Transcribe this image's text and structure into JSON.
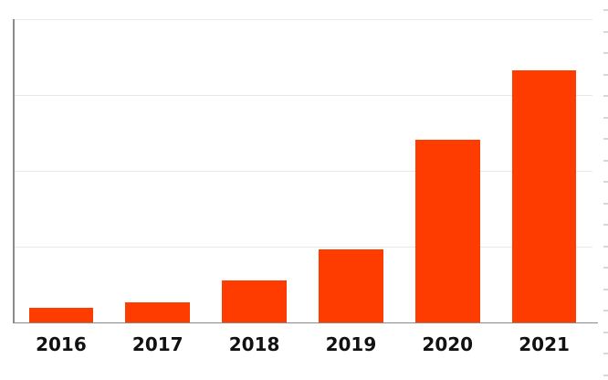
{
  "chart_data": {
    "type": "bar",
    "title": "",
    "subtitle": "",
    "xlabel": "",
    "ylabel": "",
    "categories": [
      "2016",
      "2017",
      "2018",
      "2019",
      "2020",
      "2021"
    ],
    "values": [
      0.19,
      0.26,
      0.56,
      0.96,
      2.41,
      3.33
    ],
    "ylim": [
      0,
      4
    ],
    "gridline_values": [
      1,
      2,
      3,
      4
    ],
    "grid": "horizontal",
    "legend": "none",
    "y_tick_labels_visible": false,
    "x_tick_labels_visible": true
  },
  "colors": {
    "bar": "#FF3C00",
    "gridline": "#E8E8E8",
    "axis": "#8A8A8A",
    "x_label_text": "#111111",
    "right_tick": "#D8D8D8",
    "background": "#FFFFFF"
  },
  "right_edge_ticks": {
    "count": 18
  }
}
